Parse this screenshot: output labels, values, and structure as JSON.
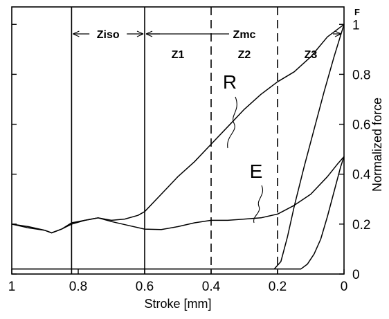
{
  "chart_data": {
    "type": "line",
    "title": "",
    "xlabel": "Stroke [mm]",
    "ylabel": "Normalized force",
    "y_unit_label": "F",
    "xlim": [
      1,
      0
    ],
    "x_reversed": true,
    "ylim": [
      0,
      1.07
    ],
    "y_axis_position": "right",
    "grid": false,
    "x_ticks": [
      1,
      0.8,
      0.6,
      0.4,
      0.2,
      0
    ],
    "x_tick_labels": [
      "1",
      "0.8",
      "0.6",
      "0.4",
      "0.2",
      "0"
    ],
    "y_ticks": [
      0,
      0.2,
      0.4,
      0.6,
      0.8,
      1
    ],
    "y_tick_labels": [
      "0",
      "0.2",
      "0.4",
      "0.6",
      "0.8",
      "1"
    ],
    "zone_lines": [
      {
        "x": 0.82,
        "style": "solid"
      },
      {
        "x": 0.6,
        "style": "solid"
      },
      {
        "x": 0.4,
        "style": "dashed"
      },
      {
        "x": 0.2,
        "style": "dashed"
      }
    ],
    "zones": [
      {
        "label": "Ziso",
        "from": 0.82,
        "to": 0.6,
        "arrow": true
      },
      {
        "label": "Zmc",
        "from": 0.6,
        "to": 0.0,
        "arrow": true
      },
      {
        "label": "Z1",
        "from": 0.6,
        "to": 0.4,
        "arrow": false
      },
      {
        "label": "Z2",
        "from": 0.4,
        "to": 0.2,
        "arrow": false
      },
      {
        "label": "Z3",
        "from": 0.2,
        "to": 0.0,
        "arrow": false
      }
    ],
    "series": [
      {
        "name": "R",
        "x": [
          1.0,
          0.95,
          0.9,
          0.88,
          0.85,
          0.82,
          0.78,
          0.74,
          0.7,
          0.66,
          0.62,
          0.6,
          0.55,
          0.5,
          0.45,
          0.4,
          0.35,
          0.3,
          0.25,
          0.2,
          0.15,
          0.1,
          0.05,
          0.0
        ],
        "y": [
          0.2,
          0.185,
          0.175,
          0.165,
          0.18,
          0.205,
          0.215,
          0.225,
          0.215,
          0.22,
          0.235,
          0.25,
          0.32,
          0.39,
          0.45,
          0.52,
          0.59,
          0.66,
          0.72,
          0.77,
          0.81,
          0.87,
          0.95,
          1.0
        ]
      },
      {
        "name": "E",
        "x": [
          1.0,
          0.95,
          0.9,
          0.88,
          0.85,
          0.82,
          0.78,
          0.74,
          0.7,
          0.65,
          0.6,
          0.55,
          0.5,
          0.45,
          0.4,
          0.35,
          0.3,
          0.25,
          0.2,
          0.15,
          0.1,
          0.05,
          0.02,
          0.0
        ],
        "y": [
          0.2,
          0.19,
          0.175,
          0.165,
          0.18,
          0.2,
          0.215,
          0.225,
          0.21,
          0.195,
          0.18,
          0.178,
          0.19,
          0.205,
          0.215,
          0.215,
          0.22,
          0.225,
          0.24,
          0.275,
          0.32,
          0.39,
          0.44,
          0.47
        ]
      },
      {
        "name": "",
        "x": [
          1.0,
          0.9,
          0.8,
          0.7,
          0.6,
          0.5,
          0.4,
          0.3,
          0.21,
          0.19,
          0.17,
          0.15,
          0.12,
          0.09,
          0.06,
          0.03,
          0.0
        ],
        "y": [
          0.02,
          0.02,
          0.02,
          0.02,
          0.02,
          0.02,
          0.02,
          0.02,
          0.02,
          0.05,
          0.15,
          0.27,
          0.43,
          0.58,
          0.73,
          0.87,
          1.0
        ]
      },
      {
        "name": "",
        "x": [
          1.0,
          0.9,
          0.8,
          0.7,
          0.6,
          0.5,
          0.4,
          0.3,
          0.2,
          0.13,
          0.11,
          0.09,
          0.07,
          0.05,
          0.03,
          0.01,
          0.0
        ],
        "y": [
          0.02,
          0.02,
          0.02,
          0.02,
          0.02,
          0.02,
          0.02,
          0.02,
          0.02,
          0.02,
          0.04,
          0.08,
          0.14,
          0.23,
          0.33,
          0.43,
          0.47
        ]
      }
    ],
    "annotations": [
      {
        "text": "R",
        "series": "R"
      },
      {
        "text": "E",
        "series": "E"
      }
    ]
  }
}
